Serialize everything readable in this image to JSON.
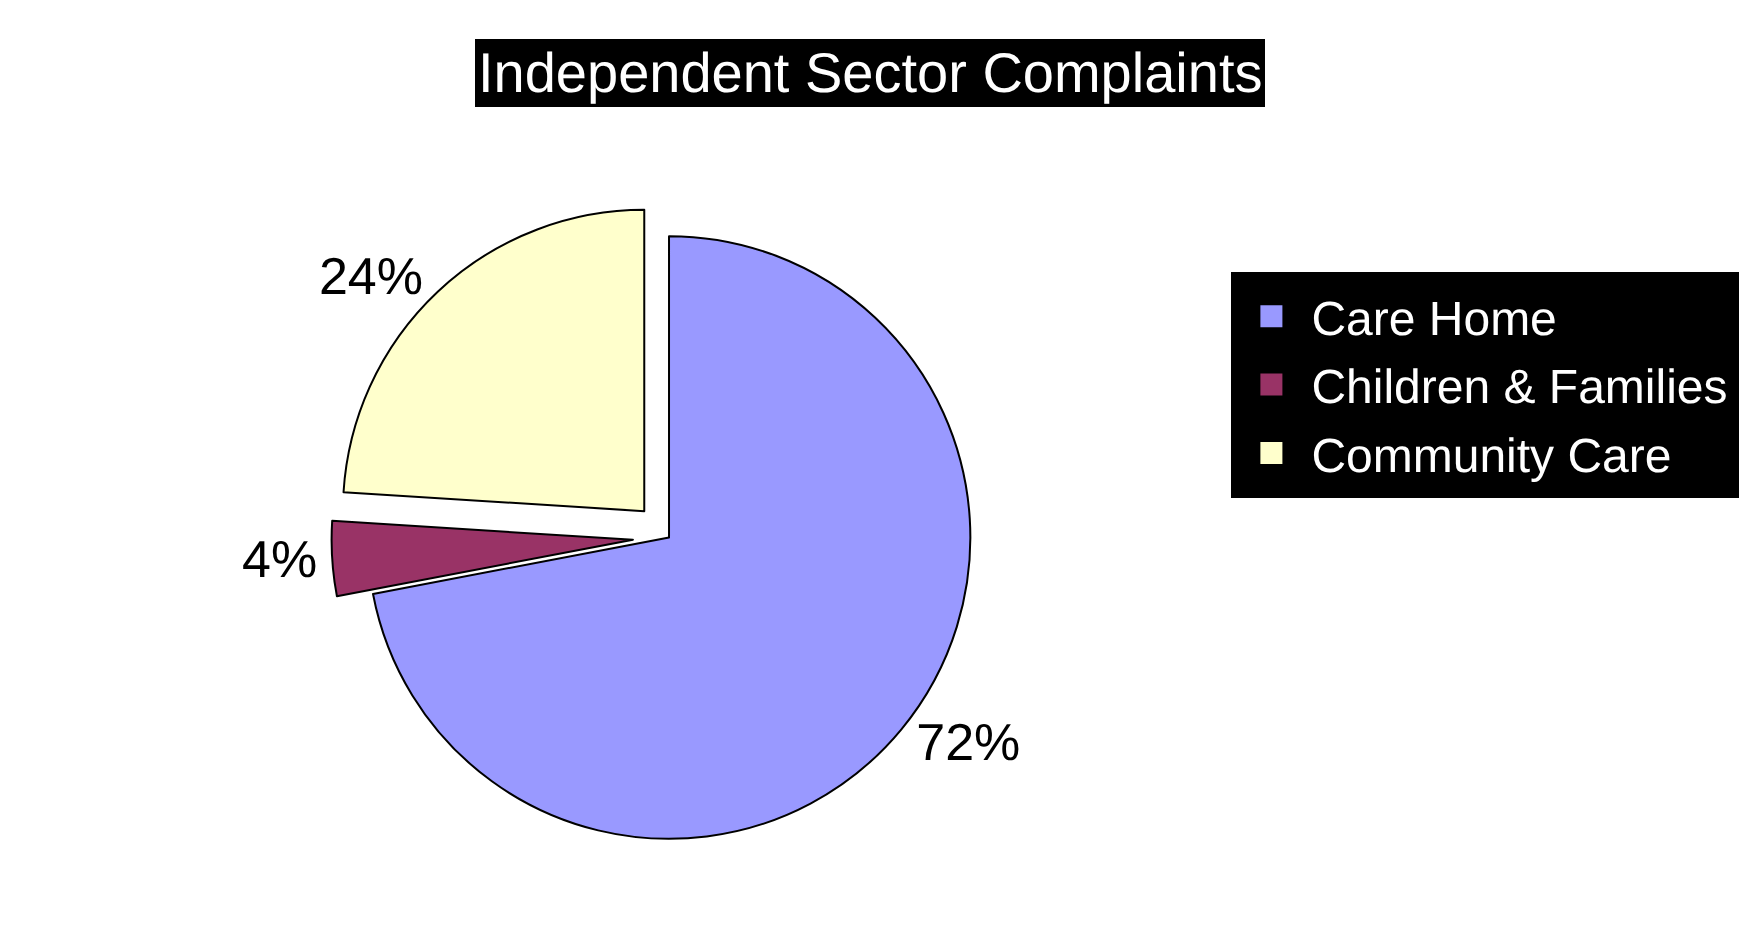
{
  "chart_data": {
    "type": "pie",
    "title": "Independent Sector Complaints",
    "categories": [
      "Care Home",
      "Children & Families",
      "Community Care"
    ],
    "values": [
      72,
      4,
      24
    ],
    "colors": [
      "#9999ff",
      "#993366",
      "#ffffcc"
    ],
    "value_labels": [
      "72%",
      "4%",
      "24%"
    ],
    "legend": "right"
  }
}
